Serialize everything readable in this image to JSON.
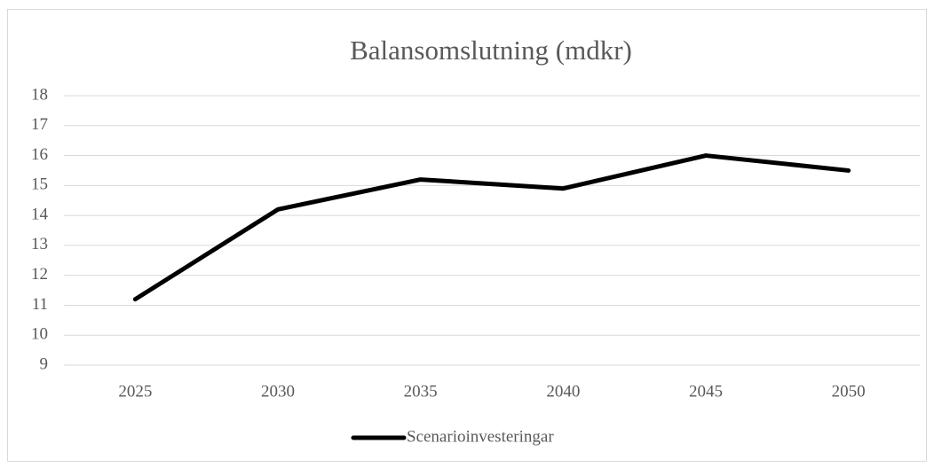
{
  "chart_data": {
    "type": "line",
    "title": "Balansomslutning (mdkr)",
    "categories": [
      "2025",
      "2030",
      "2035",
      "2040",
      "2045",
      "2050"
    ],
    "series": [
      {
        "name": "Scenarioinvesteringar",
        "color": "#000000",
        "values": [
          11.2,
          14.2,
          15.2,
          14.9,
          16.0,
          15.5
        ]
      }
    ],
    "ylim": [
      9,
      18
    ],
    "yticks": [
      9,
      10,
      11,
      12,
      13,
      14,
      15,
      16,
      17,
      18
    ],
    "grid": true,
    "legend": "bottom"
  }
}
